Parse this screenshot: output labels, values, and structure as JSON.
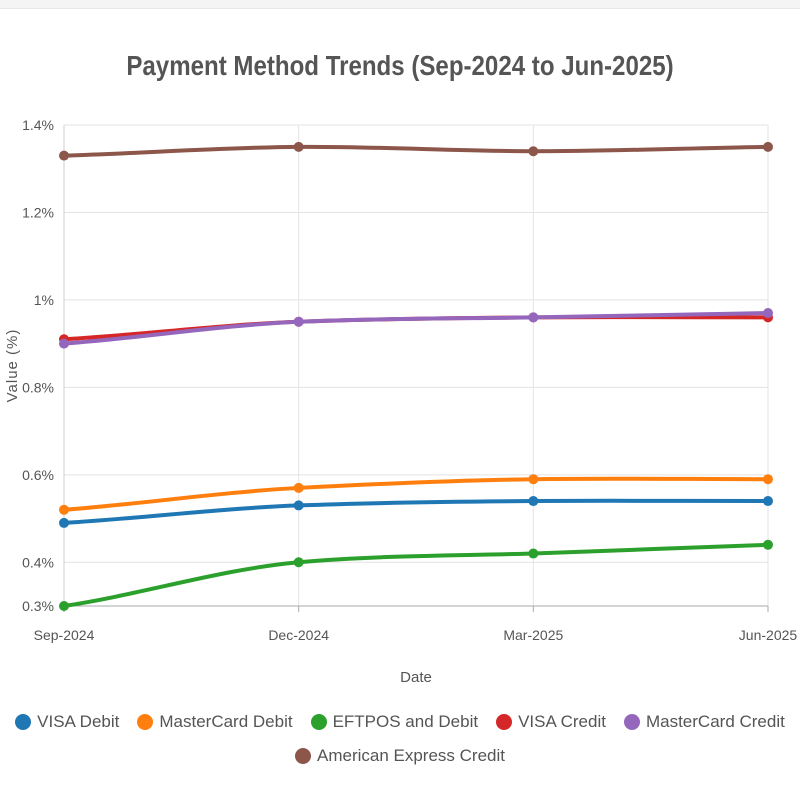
{
  "chart_data": {
    "type": "line",
    "title": "Payment Method Trends (Sep-2024 to Jun-2025)",
    "xlabel": "Date",
    "ylabel": "Value (%)",
    "x": [
      "Sep-2024",
      "Dec-2024",
      "Mar-2025",
      "Jun-2025"
    ],
    "ylim": [
      0.3,
      1.4
    ],
    "yticks": [
      {
        "value": 0.3,
        "label": "0.3%"
      },
      {
        "value": 0.4,
        "label": "0.4%"
      },
      {
        "value": 0.6,
        "label": "0.6%"
      },
      {
        "value": 0.8,
        "label": "0.8%"
      },
      {
        "value": 1.0,
        "label": "1%"
      },
      {
        "value": 1.2,
        "label": "1.2%"
      },
      {
        "value": 1.4,
        "label": "1.4%"
      }
    ],
    "grid": true,
    "legend_position": "bottom",
    "series": [
      {
        "name": "VISA Debit",
        "color": "#1f77b4",
        "values": [
          0.49,
          0.53,
          0.54,
          0.54
        ]
      },
      {
        "name": "MasterCard Debit",
        "color": "#ff7f0e",
        "values": [
          0.52,
          0.57,
          0.59,
          0.59
        ]
      },
      {
        "name": "EFTPOS and Debit",
        "color": "#2ca02c",
        "values": [
          0.3,
          0.4,
          0.42,
          0.44
        ]
      },
      {
        "name": "VISA Credit",
        "color": "#d62728",
        "values": [
          0.91,
          0.95,
          0.96,
          0.96
        ]
      },
      {
        "name": "MasterCard Credit",
        "color": "#9467bd",
        "values": [
          0.9,
          0.95,
          0.96,
          0.97
        ]
      },
      {
        "name": "American Express Credit",
        "color": "#8c564b",
        "values": [
          1.33,
          1.35,
          1.34,
          1.35
        ]
      }
    ]
  }
}
